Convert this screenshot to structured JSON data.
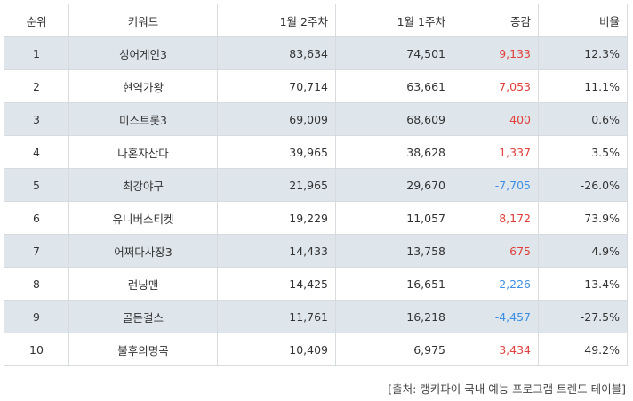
{
  "table": {
    "headers": {
      "rank": "순위",
      "keyword": "키워드",
      "week2": "1월 2주차",
      "week1": "1월 1주차",
      "change": "증감",
      "ratio": "비율"
    },
    "rows": [
      {
        "rank": "1",
        "keyword": "싱어게인3",
        "week2": "83,634",
        "week1": "74,501",
        "change": "9,133",
        "ratio": "12.3%"
      },
      {
        "rank": "2",
        "keyword": "현역가왕",
        "week2": "70,714",
        "week1": "63,661",
        "change": "7,053",
        "ratio": "11.1%"
      },
      {
        "rank": "3",
        "keyword": "미스트롯3",
        "week2": "69,009",
        "week1": "68,609",
        "change": "400",
        "ratio": "0.6%"
      },
      {
        "rank": "4",
        "keyword": "나혼자산다",
        "week2": "39,965",
        "week1": "38,628",
        "change": "1,337",
        "ratio": "3.5%"
      },
      {
        "rank": "5",
        "keyword": "최강야구",
        "week2": "21,965",
        "week1": "29,670",
        "change": "-7,705",
        "ratio": "-26.0%"
      },
      {
        "rank": "6",
        "keyword": "유니버스티켓",
        "week2": "19,229",
        "week1": "11,057",
        "change": "8,172",
        "ratio": "73.9%"
      },
      {
        "rank": "7",
        "keyword": "어쩌다사장3",
        "week2": "14,433",
        "week1": "13,758",
        "change": "675",
        "ratio": "4.9%"
      },
      {
        "rank": "8",
        "keyword": "런닝맨",
        "week2": "14,425",
        "week1": "16,651",
        "change": "-2,226",
        "ratio": "-13.4%"
      },
      {
        "rank": "9",
        "keyword": "골든걸스",
        "week2": "11,761",
        "week1": "16,218",
        "change": "-4,457",
        "ratio": "-27.5%"
      },
      {
        "rank": "10",
        "keyword": "불후의명곡",
        "week2": "10,409",
        "week1": "6,975",
        "change": "3,434",
        "ratio": "49.2%"
      }
    ]
  },
  "source": "[출처: 랭키파이 국내 예능 프로그램 트렌드 테이블]",
  "colors": {
    "positive_change": "#e0413c",
    "negative_change": "#3d8fe6",
    "shaded_row": "#dfe6eb"
  }
}
